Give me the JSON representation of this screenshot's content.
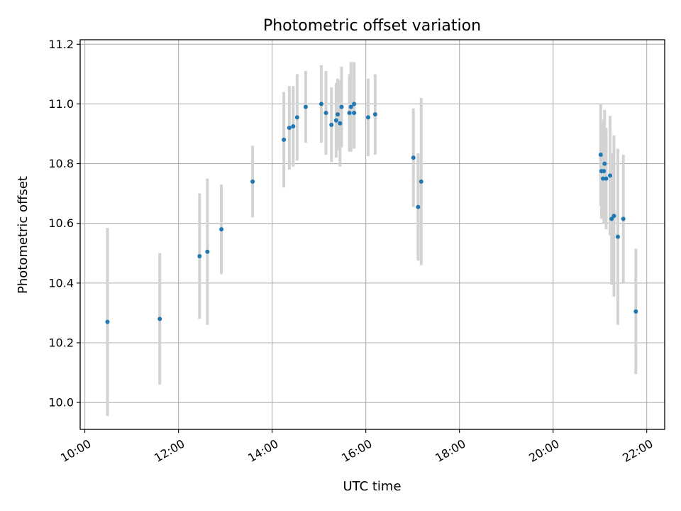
{
  "chart_data": {
    "type": "scatter",
    "title": "Photometric offset variation",
    "xlabel": "UTC time",
    "ylabel": "Photometric offset",
    "x_ticks": [
      "10:00",
      "12:00",
      "14:00",
      "16:00",
      "18:00",
      "20:00",
      "22:00"
    ],
    "y_ticks": [
      "10.0",
      "10.2",
      "10.4",
      "10.6",
      "10.8",
      "11.0",
      "11.2"
    ],
    "xlim": [
      "09:54",
      "22:23"
    ],
    "ylim": [
      9.91,
      11.215
    ],
    "grid": true,
    "legend": "none",
    "colors": {
      "marker": "#1f77b4",
      "errorbar": "#d3d3d3",
      "grid": "#b0b0b0"
    },
    "points": [
      {
        "x": "10:29",
        "y": 10.27,
        "err": 0.315
      },
      {
        "x": "11:36",
        "y": 10.28,
        "err": 0.22
      },
      {
        "x": "12:27",
        "y": 10.49,
        "err": 0.21
      },
      {
        "x": "12:37",
        "y": 10.505,
        "err": 0.245
      },
      {
        "x": "12:55",
        "y": 10.58,
        "err": 0.15
      },
      {
        "x": "13:35",
        "y": 10.74,
        "err": 0.12
      },
      {
        "x": "14:15",
        "y": 10.88,
        "err": 0.16
      },
      {
        "x": "14:22",
        "y": 10.92,
        "err": 0.14
      },
      {
        "x": "14:27",
        "y": 10.925,
        "err": 0.135
      },
      {
        "x": "14:32",
        "y": 10.955,
        "err": 0.145
      },
      {
        "x": "14:43",
        "y": 10.99,
        "err": 0.12
      },
      {
        "x": "15:03",
        "y": 11.0,
        "err": 0.13
      },
      {
        "x": "15:09",
        "y": 10.97,
        "err": 0.14
      },
      {
        "x": "15:16",
        "y": 10.93,
        "err": 0.125
      },
      {
        "x": "15:22",
        "y": 10.945,
        "err": 0.125
      },
      {
        "x": "15:24",
        "y": 10.965,
        "err": 0.12
      },
      {
        "x": "15:27",
        "y": 10.935,
        "err": 0.145
      },
      {
        "x": "15:29",
        "y": 10.99,
        "err": 0.135
      },
      {
        "x": "15:39",
        "y": 10.97,
        "err": 0.13
      },
      {
        "x": "15:41",
        "y": 10.99,
        "err": 0.15
      },
      {
        "x": "15:45",
        "y": 11.0,
        "err": 0.14
      },
      {
        "x": "15:45",
        "y": 10.97,
        "err": 0.12
      },
      {
        "x": "16:03",
        "y": 10.955,
        "err": 0.13
      },
      {
        "x": "16:12",
        "y": 10.965,
        "err": 0.135
      },
      {
        "x": "17:01",
        "y": 10.82,
        "err": 0.165
      },
      {
        "x": "17:07",
        "y": 10.655,
        "err": 0.18
      },
      {
        "x": "17:11",
        "y": 10.74,
        "err": 0.28
      },
      {
        "x": "21:01",
        "y": 10.83,
        "err": 0.17
      },
      {
        "x": "21:02",
        "y": 10.775,
        "err": 0.16
      },
      {
        "x": "21:04",
        "y": 10.75,
        "err": 0.13
      },
      {
        "x": "21:05",
        "y": 10.775,
        "err": 0.175
      },
      {
        "x": "21:06",
        "y": 10.8,
        "err": 0.18
      },
      {
        "x": "21:08",
        "y": 10.75,
        "err": 0.17
      },
      {
        "x": "21:13",
        "y": 10.76,
        "err": 0.2
      },
      {
        "x": "21:15",
        "y": 10.615,
        "err": 0.22
      },
      {
        "x": "21:18",
        "y": 10.625,
        "err": 0.27
      },
      {
        "x": "21:23",
        "y": 10.555,
        "err": 0.295
      },
      {
        "x": "21:30",
        "y": 10.615,
        "err": 0.215
      },
      {
        "x": "21:46",
        "y": 10.305,
        "err": 0.21
      }
    ]
  }
}
